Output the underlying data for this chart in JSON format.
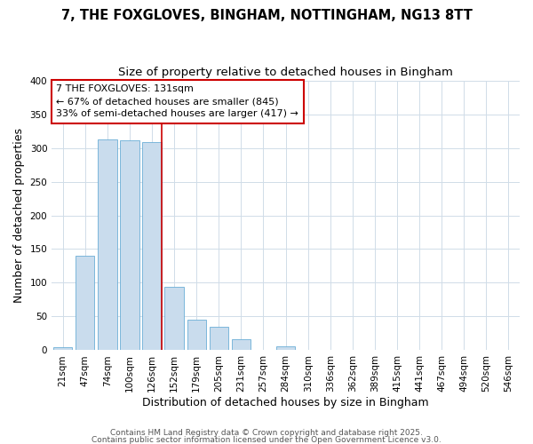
{
  "title_line1": "7, THE FOXGLOVES, BINGHAM, NOTTINGHAM, NG13 8TT",
  "title_line2": "Size of property relative to detached houses in Bingham",
  "xlabel": "Distribution of detached houses by size in Bingham",
  "ylabel": "Number of detached properties",
  "categories": [
    "21sqm",
    "47sqm",
    "74sqm",
    "100sqm",
    "126sqm",
    "152sqm",
    "179sqm",
    "205sqm",
    "231sqm",
    "257sqm",
    "284sqm",
    "310sqm",
    "336sqm",
    "362sqm",
    "389sqm",
    "415sqm",
    "441sqm",
    "467sqm",
    "494sqm",
    "520sqm",
    "546sqm"
  ],
  "values": [
    4,
    140,
    312,
    311,
    308,
    94,
    46,
    35,
    17,
    0,
    6,
    0,
    0,
    0,
    0,
    0,
    0,
    0,
    0,
    0,
    0
  ],
  "bar_color": "#c9dced",
  "bar_edge_color": "#6baed6",
  "red_line_index": 4,
  "red_line_color": "#cc0000",
  "annotation_text": "7 THE FOXGLOVES: 131sqm\n← 67% of detached houses are smaller (845)\n33% of semi-detached houses are larger (417) →",
  "annotation_box_color": "white",
  "annotation_box_edge": "#cc0000",
  "ylim": [
    0,
    400
  ],
  "yticks": [
    0,
    50,
    100,
    150,
    200,
    250,
    300,
    350,
    400
  ],
  "background_color": "#ffffff",
  "grid_color": "#d0dce8",
  "footer_line1": "Contains HM Land Registry data © Crown copyright and database right 2025.",
  "footer_line2": "Contains public sector information licensed under the Open Government Licence v3.0.",
  "title_fontsize": 10.5,
  "subtitle_fontsize": 9.5,
  "axis_label_fontsize": 9,
  "tick_fontsize": 7.5,
  "annotation_fontsize": 8,
  "footer_fontsize": 6.5
}
